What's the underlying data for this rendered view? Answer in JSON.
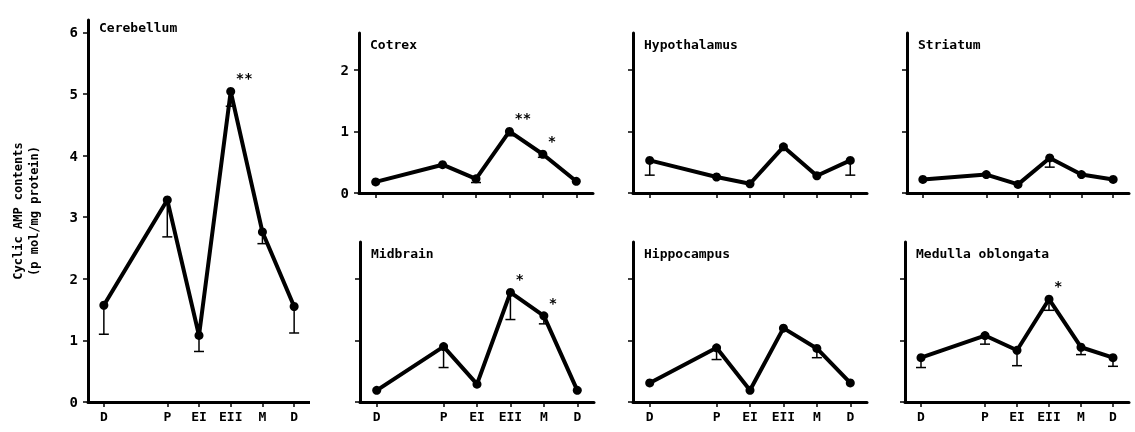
{
  "chart_data": [
    {
      "type": "line",
      "title": "Cerebellum",
      "ylabel": "Cyclic AMP contents\n(p mol/mg protein)",
      "categories": [
        "D",
        null,
        "P",
        "EI",
        "EII",
        "M",
        "D"
      ],
      "ylim": [
        0,
        6.2
      ],
      "yticks": [
        0,
        1,
        2,
        3,
        4,
        5,
        6
      ],
      "color": "#000000",
      "marker": "circle",
      "values": [
        1.57,
        null,
        3.28,
        1.08,
        5.04,
        2.76,
        1.55
      ],
      "errors": [
        [
          1.1,
          1.57
        ],
        null,
        [
          2.68,
          3.28
        ],
        [
          0.82,
          1.08
        ],
        [
          4.8,
          5.04
        ],
        [
          2.57,
          2.76
        ],
        [
          1.12,
          1.55
        ]
      ],
      "annotations": [
        {
          "text": "**",
          "x": "EII",
          "y": 5.04
        }
      ]
    },
    {
      "type": "line",
      "title": "Cotrex",
      "tick_labels": "y",
      "categories": [
        "D",
        null,
        "P",
        "EI",
        "EII",
        "M",
        "D"
      ],
      "ylim": [
        0,
        2.6
      ],
      "yticks": [
        0,
        1,
        2
      ],
      "color": "#000000",
      "marker": "circle",
      "values": [
        0.18,
        null,
        0.46,
        0.23,
        1.0,
        0.63,
        0.19
      ],
      "errors": [
        null,
        null,
        null,
        [
          0.17,
          0.23
        ],
        [
          0.93,
          1.0
        ],
        [
          0.58,
          0.63
        ],
        null
      ],
      "annotations": [
        {
          "text": "**",
          "x": "EII",
          "y": 1.0
        },
        {
          "text": "*",
          "x": "M",
          "y": 0.63
        }
      ]
    },
    {
      "type": "line",
      "title": "Hypothalamus",
      "tick_labels": false,
      "categories": [
        "D",
        null,
        "P",
        "EI",
        "EII",
        "M",
        "D"
      ],
      "ylim": [
        0,
        2.6
      ],
      "yticks": [
        0,
        1,
        2
      ],
      "color": "#000000",
      "marker": "circle",
      "values": [
        0.53,
        null,
        0.26,
        0.15,
        0.75,
        0.28,
        0.53
      ],
      "errors": [
        [
          0.29,
          0.53
        ],
        null,
        null,
        null,
        null,
        null,
        [
          0.29,
          0.53
        ]
      ]
    },
    {
      "type": "line",
      "title": "Striatum",
      "tick_labels": false,
      "categories": [
        "D",
        null,
        "P",
        "EI",
        "EII",
        "M",
        "D"
      ],
      "ylim": [
        0,
        2.6
      ],
      "yticks": [
        0,
        1,
        2
      ],
      "color": "#000000",
      "marker": "circle",
      "values": [
        0.22,
        null,
        0.3,
        0.14,
        0.57,
        0.3,
        0.22
      ],
      "errors": [
        null,
        null,
        null,
        null,
        [
          0.42,
          0.57
        ],
        null,
        null
      ]
    },
    {
      "type": "line",
      "title": "Midbrain",
      "tick_labels": "x",
      "categories": [
        "D",
        null,
        "P",
        "EI",
        "EII",
        "M",
        "D"
      ],
      "ylim": [
        0,
        2.6
      ],
      "yticks": [
        0,
        1,
        2
      ],
      "color": "#000000",
      "marker": "circle",
      "values": [
        0.19,
        null,
        0.9,
        0.29,
        1.78,
        1.4,
        0.19
      ],
      "errors": [
        null,
        null,
        [
          0.56,
          0.9
        ],
        null,
        [
          1.34,
          1.78
        ],
        [
          1.27,
          1.4
        ],
        null
      ],
      "annotations": [
        {
          "text": "*",
          "x": "EII",
          "y": 1.78
        },
        {
          "text": "*",
          "x": "M",
          "y": 1.4
        }
      ]
    },
    {
      "type": "line",
      "title": "Hippocampus",
      "tick_labels": "x",
      "categories": [
        "D",
        null,
        "P",
        "EI",
        "EII",
        "M",
        "D"
      ],
      "ylim": [
        0,
        2.6
      ],
      "yticks": [
        0,
        1,
        2
      ],
      "color": "#000000",
      "marker": "circle",
      "values": [
        0.31,
        null,
        0.88,
        0.19,
        1.2,
        0.87,
        0.31
      ],
      "errors": [
        null,
        null,
        [
          0.69,
          0.88
        ],
        null,
        null,
        [
          0.72,
          0.87
        ],
        null
      ]
    },
    {
      "type": "line",
      "title": "Medulla oblongata",
      "tick_labels": "x",
      "categories": [
        "D",
        null,
        "P",
        "EI",
        "EII",
        "M",
        "D"
      ],
      "ylim": [
        0,
        2.6
      ],
      "yticks": [
        0,
        1,
        2
      ],
      "color": "#000000",
      "marker": "circle",
      "values": [
        0.72,
        null,
        1.08,
        0.84,
        1.67,
        0.89,
        0.72
      ],
      "errors": [
        [
          0.56,
          0.72
        ],
        null,
        [
          0.94,
          1.08
        ],
        [
          0.59,
          0.84
        ],
        [
          1.49,
          1.67
        ],
        [
          0.77,
          0.89
        ],
        [
          0.58,
          0.72
        ]
      ],
      "annotations": [
        {
          "text": "*",
          "x": "EII",
          "y": 1.67
        }
      ]
    }
  ]
}
